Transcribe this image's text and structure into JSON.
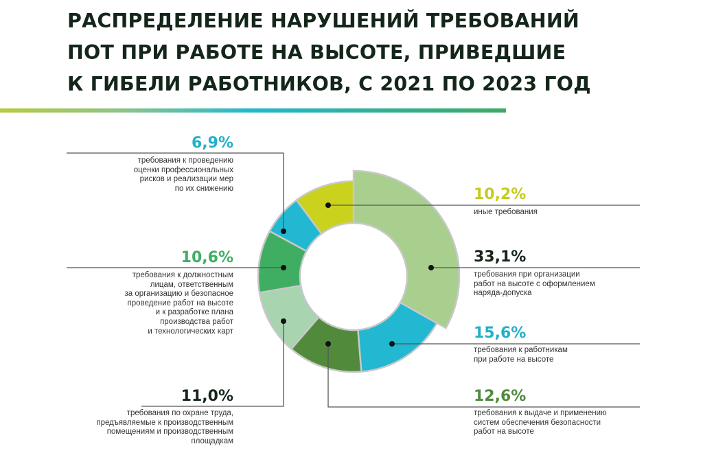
{
  "title": {
    "lines": [
      "РАСПРЕДЕЛЕНИЕ НАРУШЕНИЙ ТРЕБОВАНИЙ",
      "ПОТ ПРИ РАБОТЕ НА ВЫСОТЕ, ПРИВЕДШИЕ",
      "К ГИБЕЛИ РАБОТНИКОВ, С 2021 ПО 2023 ГОД"
    ]
  },
  "labels": {
    "s1": {
      "pct": "33,1%",
      "lines": [
        "требования при организации",
        "работ на высоте с оформлением",
        "наряда-допуска"
      ]
    },
    "s2": {
      "pct": "15,6%",
      "lines": [
        "требования к работникам",
        "при работе на высоте"
      ]
    },
    "s3": {
      "pct": "12,6%",
      "lines": [
        "требования к выдаче и применению",
        "систем обеспечения безопасности",
        "работ на высоте"
      ]
    },
    "s4": {
      "pct": "11,0%",
      "lines": [
        "требования по охране труда,",
        "предъявляемые к производственным",
        "помещениям и производственным",
        "площадкам"
      ]
    },
    "s5": {
      "pct": "10,6%",
      "lines": [
        "требования к должностным",
        "лицам, ответственным",
        "за организацию и безопасное",
        "проведение работ на высоте",
        "и к разработке плана",
        "производства работ",
        "и технологических карт"
      ]
    },
    "s6": {
      "pct": "6,9%",
      "lines": [
        "требования к проведению",
        "оценки профессиональных",
        "рисков и реализации мер",
        "по их снижению"
      ]
    },
    "s7": {
      "pct": "10,2%",
      "lines": [
        "иные требования"
      ]
    }
  },
  "colors": {
    "title": "#14261a",
    "leader_line": "#555555",
    "segment_border": "#c8c8c8"
  },
  "chart_data": {
    "type": "pie",
    "variant": "donut",
    "title": "Распределение нарушений требований ПОТ при работе на высоте, приведшие к гибели работников, с 2021 по 2023 год",
    "unit": "%",
    "categories": [
      "требования при организации работ на высоте с оформлением наряда-допуска",
      "требования к работникам при работе на высоте",
      "требования к выдаче и применению систем обеспечения безопасности работ на высоте",
      "требования по охране труда, предъявляемые к производственным помещениям и производственным площадкам",
      "требования к должностным лицам, ответственным за организацию и безопасное проведение работ на высоте и к разработке плана производства работ и технологических карт",
      "требования к проведению оценки профессиональных рисков и реализации мер по их снижению",
      "иные требования"
    ],
    "values": [
      33.1,
      15.6,
      12.6,
      11.0,
      10.6,
      6.9,
      10.2
    ],
    "colors": [
      "#a8cf8e",
      "#22b8d1",
      "#528a3c",
      "#a8d4b0",
      "#3fae62",
      "#22b8d1",
      "#cad21e"
    ],
    "label_colors": [
      "#14261a",
      "#22b0c8",
      "#528a3c",
      "#14261a",
      "#3fae62",
      "#22b0c8",
      "#c4cc1c"
    ],
    "start_angle_deg": 0,
    "direction": "clockwise",
    "exploded_segment": 0,
    "legend": "leader-line labels"
  }
}
